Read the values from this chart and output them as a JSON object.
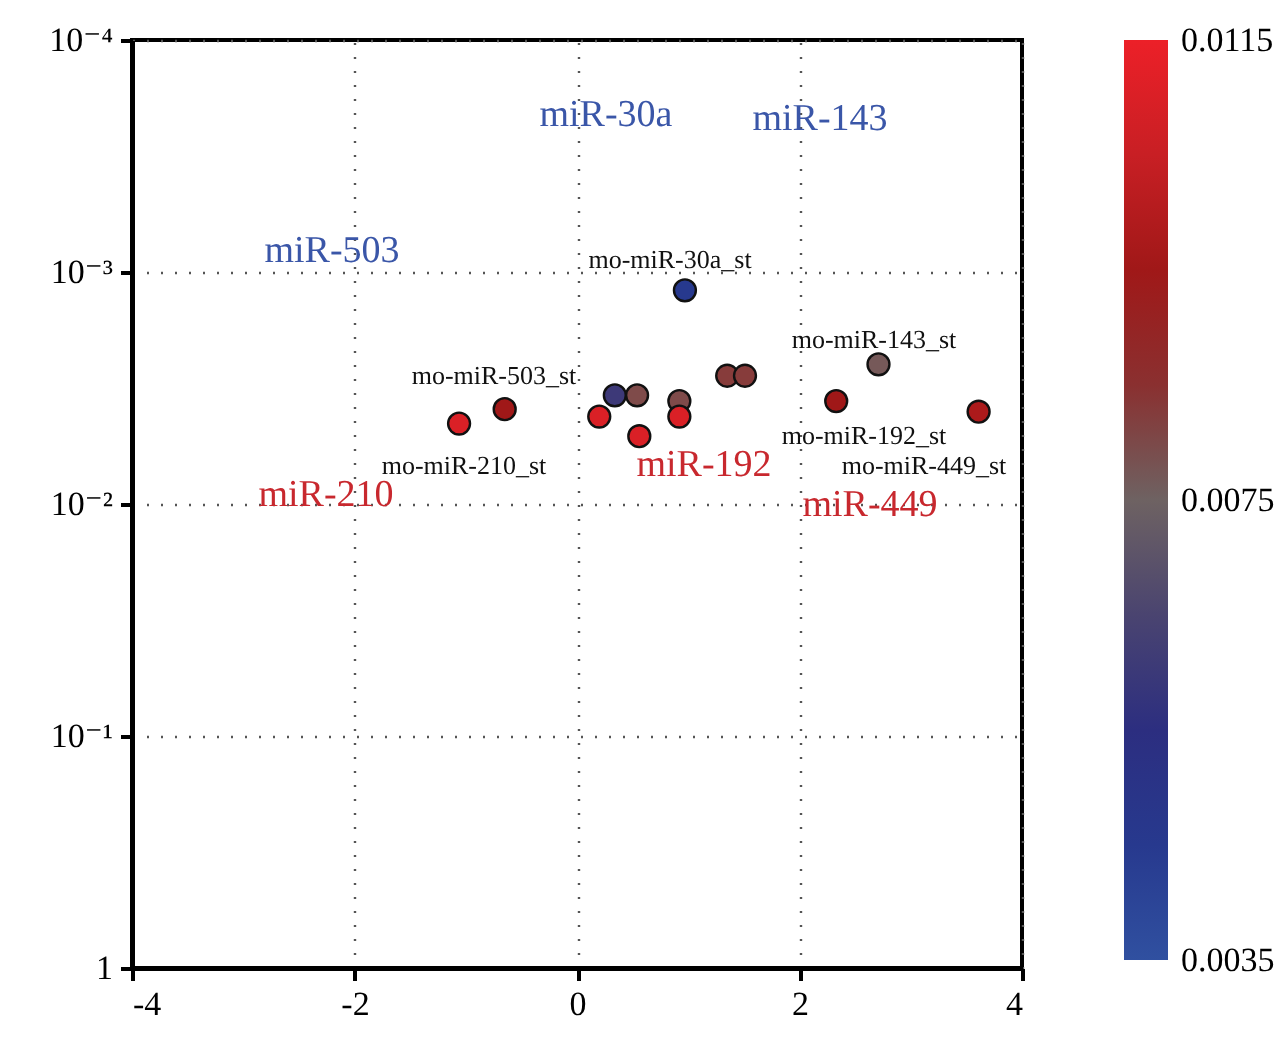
{
  "chart_data": {
    "type": "scatter",
    "x": [
      -1.06,
      -0.65,
      0.2,
      0.34,
      0.54,
      0.56,
      0.92,
      0.92,
      0.97,
      1.35,
      1.51,
      2.33,
      2.71,
      3.61
    ],
    "values": [
      0.0045,
      0.0039,
      0.0042,
      0.0034,
      0.0034,
      0.0051,
      0.0036,
      0.0042,
      0.0012,
      0.0028,
      0.0028,
      0.0036,
      0.0025,
      0.004
    ],
    "cvalues": [
      0.011,
      0.0095,
      0.011,
      0.006,
      0.008,
      0.011,
      0.008,
      0.011,
      0.0045,
      0.0083,
      0.0083,
      0.0095,
      0.0077,
      0.0098
    ],
    "xlim": [
      -4,
      4
    ],
    "xticks": [
      -4,
      -2,
      0,
      2,
      4
    ],
    "ylim": [
      1,
      0.0001
    ],
    "yticks": [
      {
        "value": 1,
        "label": "1"
      },
      {
        "value": 0.1,
        "label": "10⁻¹"
      },
      {
        "value": 0.01,
        "label": "10⁻²"
      },
      {
        "value": 0.001,
        "label": "10⁻³"
      },
      {
        "value": 0.0001,
        "label": "10⁻⁴"
      }
    ],
    "log": "y",
    "grid": true,
    "marker": "circle",
    "clim": [
      0.0035,
      0.0115
    ],
    "cticks": [
      0.0035,
      0.0075,
      0.0115
    ],
    "annotations": [
      "miR-30a",
      "miR-143",
      "miR-503",
      "miR-210",
      "miR-192",
      "miR-449",
      "mo-miR-30a_st",
      "mo-miR-143_st",
      "mo-miR-503_st",
      "mo-miR-210_st",
      "mo-miR-192_st",
      "mo-miR-449_st"
    ]
  }
}
